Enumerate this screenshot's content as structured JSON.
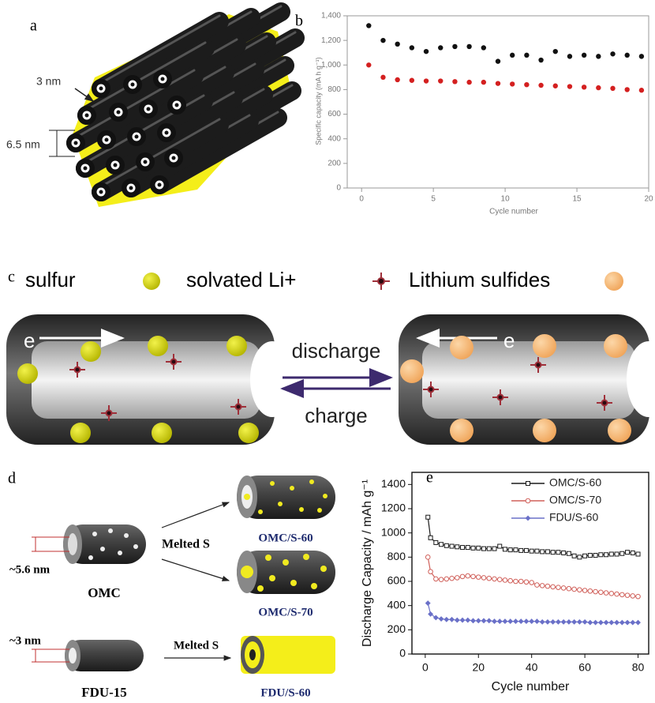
{
  "panels": {
    "a": {
      "label": "a",
      "wall": "3 nm",
      "spacing": "6.5 nm"
    },
    "c": {
      "label": "c",
      "legend": [
        "sulfur",
        "solvated Li+",
        "Lithium sulfides"
      ],
      "electron": "e",
      "discharge": "discharge",
      "charge": "charge"
    },
    "d": {
      "label": "d",
      "omc_size": "~5.6 nm",
      "omc": "OMC",
      "melted_1": "Melted S",
      "omc_s60": "OMC/S-60",
      "omc_s70": "OMC/S-70",
      "fdu_size": "~3 nm",
      "fdu": "FDU-15",
      "melted_2": "Melted S",
      "fdu_s60": "FDU/S-60"
    }
  },
  "chart_data": [
    {
      "type": "scatter",
      "label": "b",
      "x_label": "Cycle number",
      "y_label": "Specific capacity (mA h g⁻¹)",
      "x": [
        0.5,
        1.5,
        2.5,
        3.5,
        4.5,
        5.5,
        6.5,
        7.5,
        8.5,
        9.5,
        10.5,
        11.5,
        12.5,
        13.5,
        14.5,
        15.5,
        16.5,
        17.5,
        18.5,
        19.5
      ],
      "series": [
        {
          "color": "#111111",
          "values": [
            1320,
            1200,
            1170,
            1140,
            1110,
            1140,
            1150,
            1150,
            1140,
            1030,
            1080,
            1080,
            1040,
            1110,
            1070,
            1080,
            1070,
            1090,
            1080,
            1070
          ]
        },
        {
          "color": "#d42020",
          "values": [
            1000,
            900,
            880,
            875,
            870,
            870,
            865,
            860,
            860,
            850,
            845,
            840,
            835,
            830,
            825,
            820,
            815,
            810,
            800,
            795
          ]
        }
      ],
      "xlim": [
        -1,
        20
      ],
      "xticks": [
        0,
        5,
        10,
        15,
        20
      ],
      "ylim": [
        0,
        1400
      ],
      "yticks": [
        0,
        200,
        400,
        600,
        800,
        {
          "value": 1000,
          "label": "1,000"
        },
        {
          "value": 1200,
          "label": "1,200"
        },
        {
          "value": 1400,
          "label": "1,400"
        }
      ]
    },
    {
      "type": "line",
      "label": "e",
      "x_label": "Cycle number",
      "y_label": "Discharge Capacity / mAh g⁻¹",
      "x": [
        1,
        2,
        4,
        6,
        8,
        10,
        12,
        14,
        16,
        18,
        20,
        22,
        24,
        26,
        28,
        30,
        32,
        34,
        36,
        38,
        40,
        42,
        44,
        46,
        48,
        50,
        52,
        54,
        56,
        58,
        60,
        62,
        64,
        66,
        68,
        70,
        72,
        74,
        76,
        78,
        80
      ],
      "series": [
        {
          "name": "OMC/S-60",
          "color": "#1a1a1a",
          "values": [
            1130,
            960,
            920,
            905,
            895,
            890,
            885,
            880,
            880,
            875,
            875,
            870,
            870,
            870,
            890,
            865,
            860,
            860,
            855,
            855,
            850,
            850,
            845,
            845,
            840,
            840,
            835,
            830,
            810,
            800,
            810,
            815,
            815,
            820,
            820,
            825,
            825,
            830,
            840,
            835,
            825
          ]
        },
        {
          "name": "OMC/S-70",
          "color": "#d0605a",
          "values": [
            800,
            680,
            620,
            615,
            620,
            625,
            630,
            640,
            645,
            640,
            635,
            630,
            625,
            620,
            615,
            610,
            605,
            600,
            600,
            595,
            590,
            570,
            565,
            560,
            555,
            550,
            545,
            540,
            535,
            530,
            525,
            520,
            515,
            510,
            505,
            500,
            495,
            490,
            485,
            480,
            475
          ]
        },
        {
          "name": "FDU/S-60",
          "color": "#6a70c8",
          "values": [
            420,
            330,
            300,
            290,
            285,
            285,
            280,
            280,
            280,
            275,
            275,
            275,
            275,
            270,
            270,
            270,
            270,
            270,
            270,
            270,
            270,
            270,
            265,
            265,
            265,
            265,
            265,
            265,
            265,
            265,
            265,
            260,
            260,
            260,
            260,
            260,
            260,
            260,
            260,
            260,
            260
          ]
        }
      ],
      "xlim": [
        -5,
        84
      ],
      "xticks": [
        0,
        20,
        40,
        60,
        80
      ],
      "ylim": [
        0,
        1500
      ],
      "yticks": [
        0,
        200,
        400,
        600,
        800,
        1000,
        1200,
        1400
      ]
    }
  ]
}
